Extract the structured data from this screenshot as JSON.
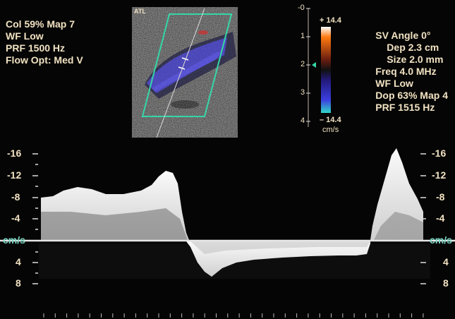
{
  "left_params": [
    "Col 59% Map 7",
    "WF Low",
    "PRF 1500  Hz",
    "Flow Opt: Med V"
  ],
  "right_params": [
    "SV Angle 0°",
    "Dep 2.3  cm",
    "Size 2.0  mm",
    "Freq 4.0  MHz",
    "WF Low",
    "Dop 63%  Map 4",
    "PRF 1515  Hz"
  ],
  "brand": "ATL",
  "depth_scale": [
    "-0",
    "1",
    "2",
    "3",
    "4"
  ],
  "color_bar": {
    "top": "+ 14.4",
    "bottom": "– 14.4",
    "unit": "cm/s",
    "top_color": "#ff6a00",
    "bottom_color": "#2fd0c8"
  },
  "velocity_scale_left": [
    "-16",
    "-12",
    "-8",
    "-4",
    "cm/s",
    "4",
    "8"
  ],
  "velocity_scale_right": [
    "-16",
    "-12",
    "-8",
    "-4",
    "cm/s",
    "4",
    "8"
  ],
  "baseline_color": "#e6e6e6",
  "sample_box_color": "#35d6a8"
}
